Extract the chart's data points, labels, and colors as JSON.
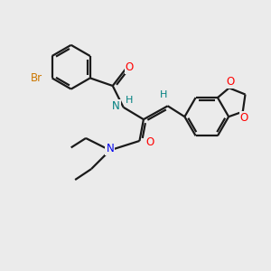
{
  "bg_color": "#ebebeb",
  "bond_color": "#1a1a1a",
  "bond_lw": 1.6,
  "atom_colors": {
    "Br": "#cc7700",
    "O": "#ff0000",
    "N_teal": "#008080",
    "N_blue": "#0000ee",
    "H_teal": "#008080",
    "C": "#1a1a1a"
  },
  "figsize": [
    3.0,
    3.0
  ],
  "dpi": 100,
  "xlim": [
    0,
    10
  ],
  "ylim": [
    0,
    10
  ]
}
